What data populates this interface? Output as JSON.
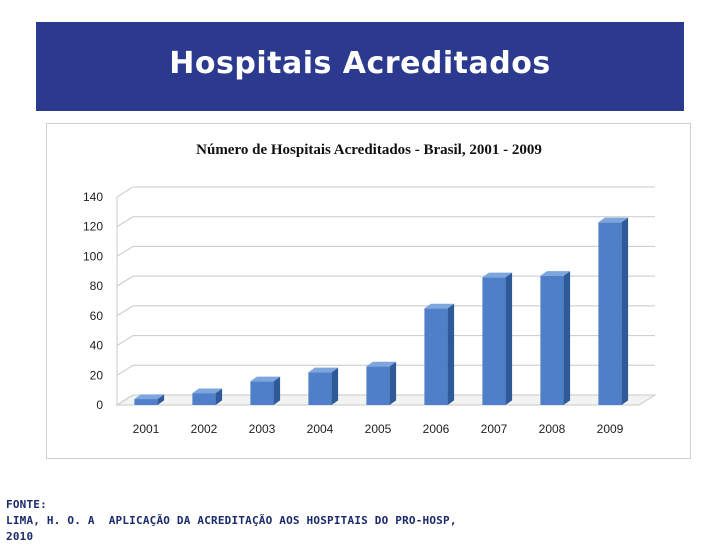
{
  "slide": {
    "title": "Hospitais Acreditados",
    "colors": {
      "banner": "#2b3a8f",
      "bar": "#4f7fc8",
      "bar_side": "#2f5a9a",
      "bar_top": "#7ea6de"
    }
  },
  "source": {
    "label": "FONTE:",
    "author": "LIMA, H. O. A",
    "work": "APLICAÇÃO DA ACREDITAÇÃO AOS HOSPITAIS DO PRO-HOSP,",
    "year": "2010"
  },
  "chart_data": {
    "type": "bar",
    "title": "Número de Hospitais Acreditados - Brasil, 2001 - 2009",
    "categories": [
      "2001",
      "2002",
      "2003",
      "2004",
      "2005",
      "2006",
      "2007",
      "2008",
      "2009"
    ],
    "values": [
      4,
      8,
      16,
      22,
      26,
      65,
      86,
      87,
      123
    ],
    "ylim": [
      0,
      140
    ],
    "yticks": [
      "0",
      "20",
      "40",
      "60",
      "80",
      "100",
      "120",
      "140"
    ],
    "xlabel": "",
    "ylabel": "",
    "grid": true,
    "style": "3d-column"
  }
}
